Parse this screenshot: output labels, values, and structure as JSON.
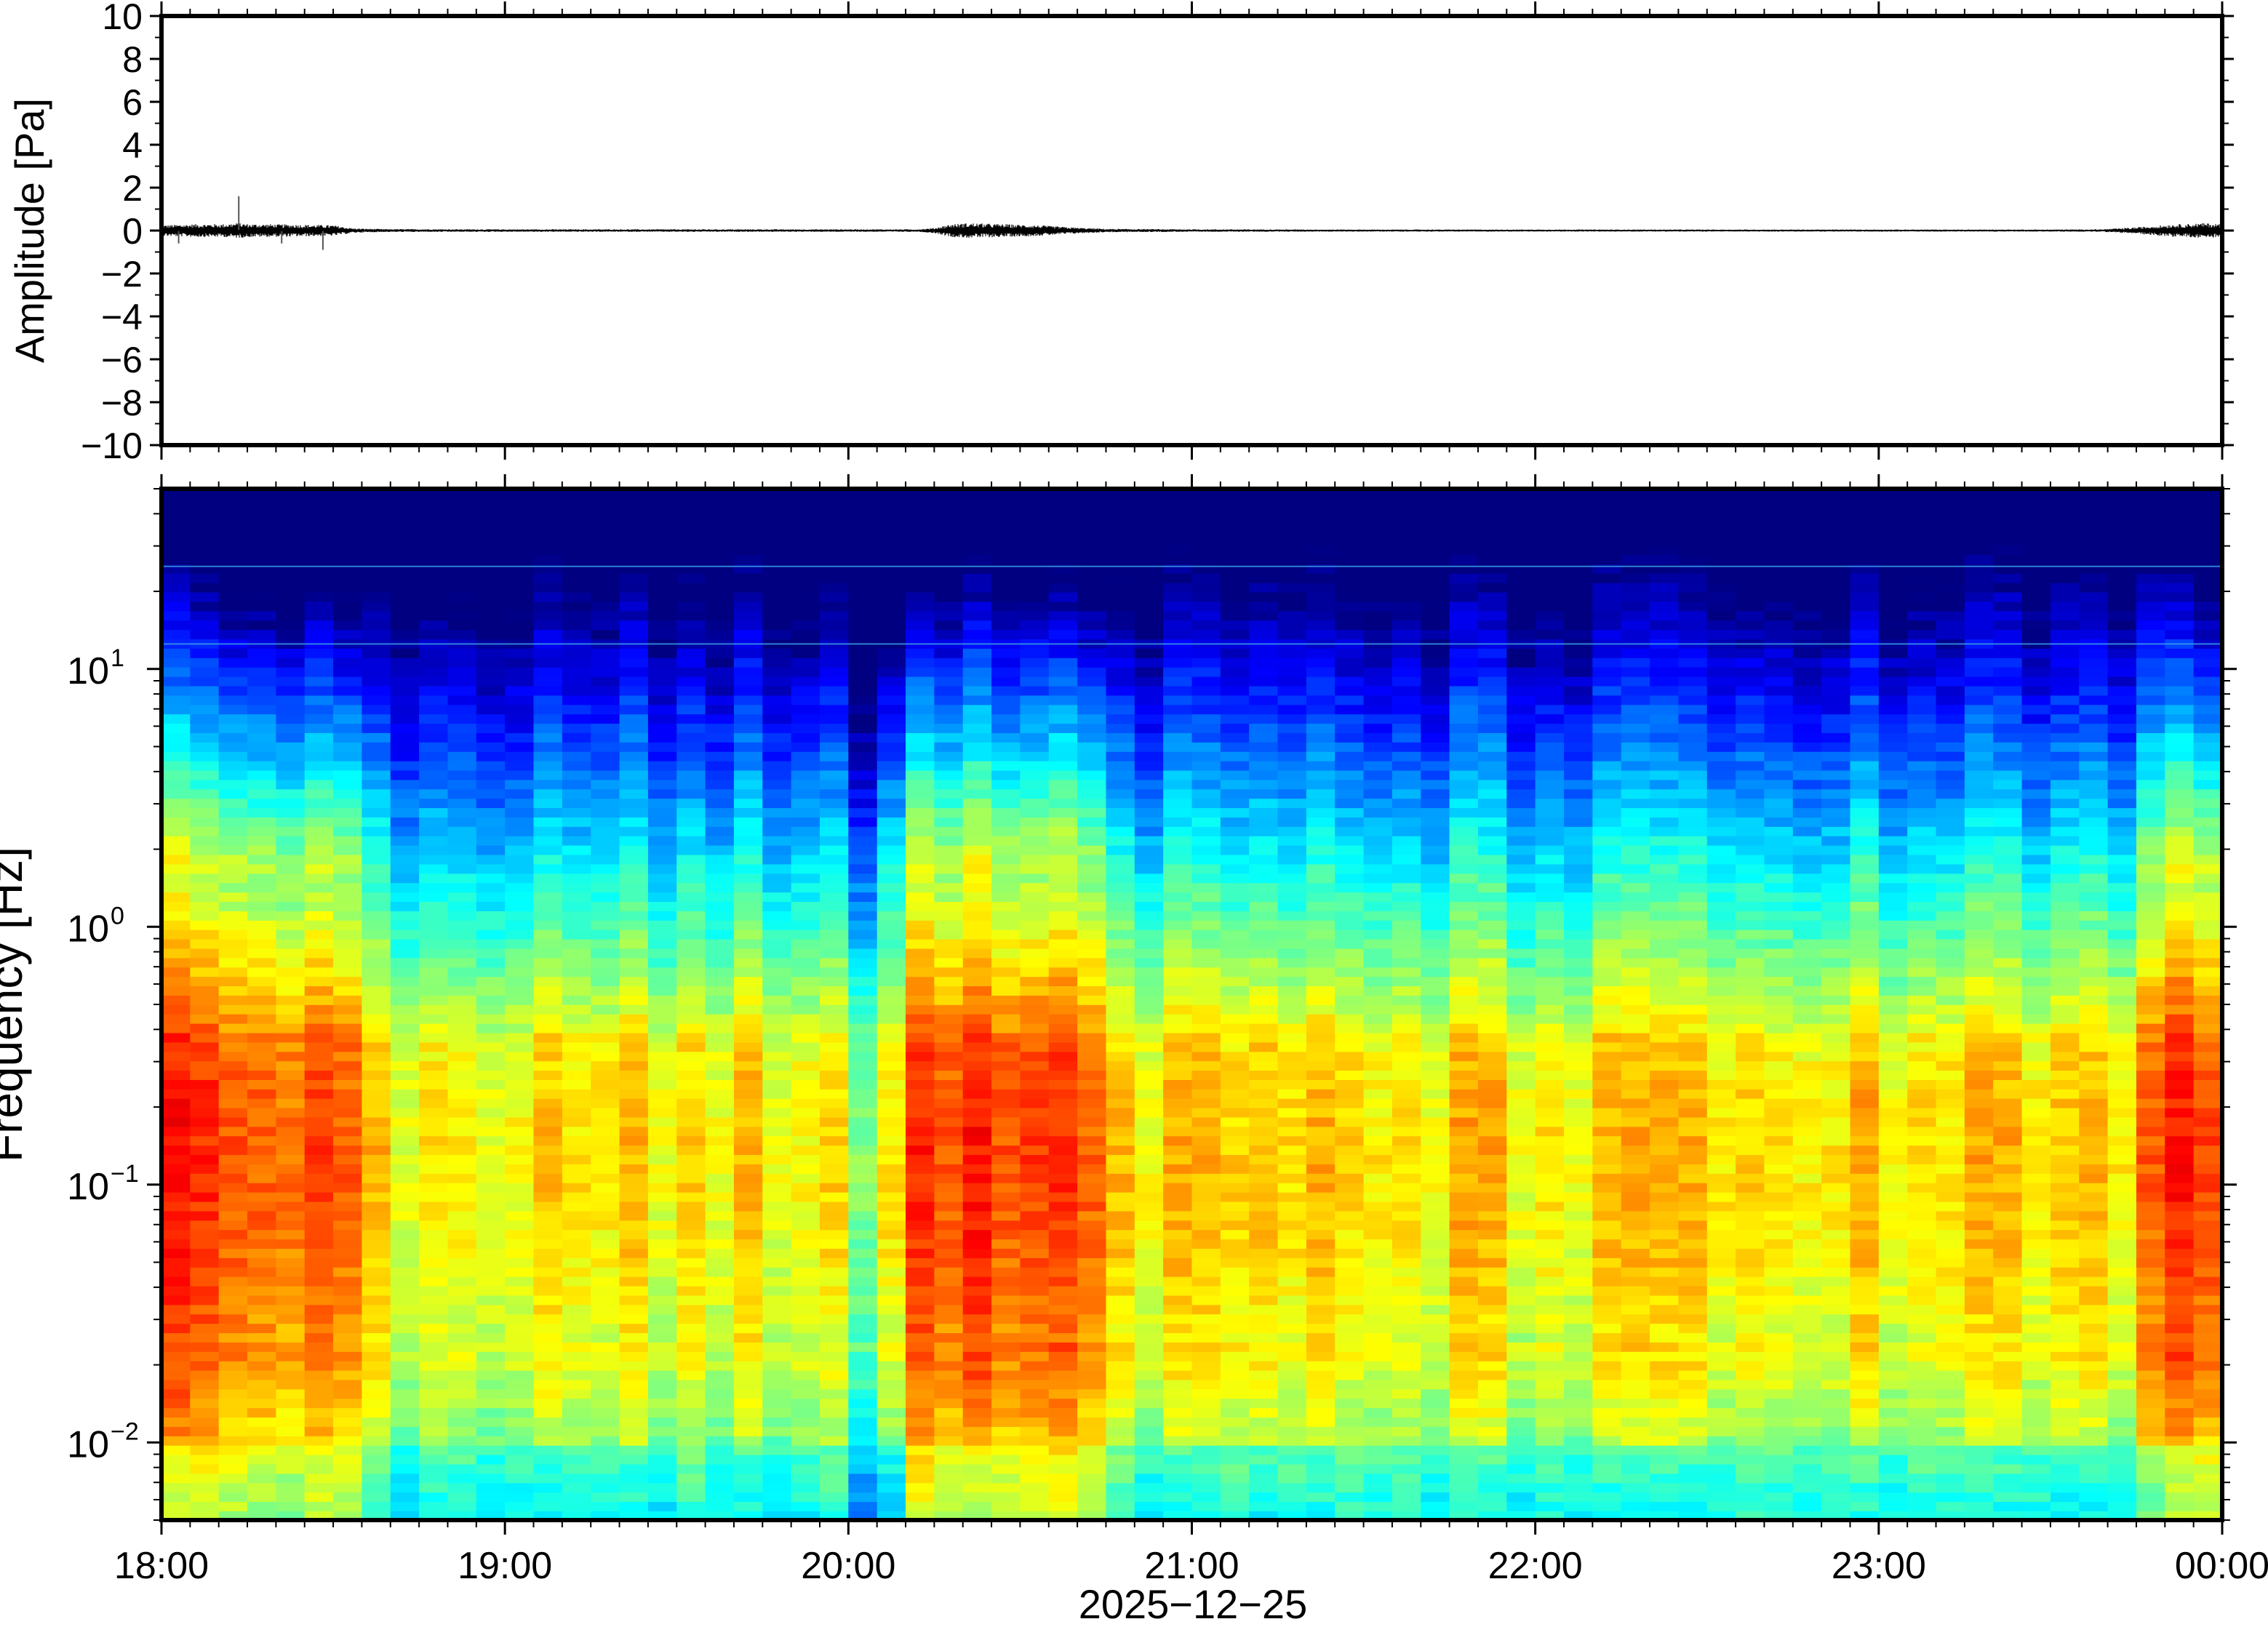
{
  "chart_data": [
    {
      "type": "line",
      "ylabel": "Amplitude [Pa]",
      "ylim": [
        -10,
        10
      ],
      "yticks": [
        10,
        8,
        6,
        4,
        2,
        0,
        -2,
        -4,
        -6,
        -8,
        -10
      ],
      "ytick_labels": [
        "10",
        "8",
        "6",
        "4",
        "2",
        "0",
        "−2",
        "−4",
        "−6",
        "−8",
        "−10"
      ],
      "xlim_hours": [
        18.0,
        24.0
      ],
      "grid": false,
      "series_color": "#000000",
      "envelope": {
        "t_hours": [
          18.0,
          18.1,
          18.18,
          18.22,
          18.26,
          18.3,
          18.4,
          18.5,
          18.56,
          18.65,
          19.0,
          19.5,
          20.0,
          20.2,
          20.25,
          20.3,
          20.35,
          20.45,
          20.55,
          20.65,
          20.75,
          21.0,
          21.5,
          22.0,
          22.5,
          23.0,
          23.5,
          23.65,
          23.75,
          23.85,
          23.95,
          24.0
        ],
        "amp": [
          0.25,
          0.3,
          0.3,
          0.35,
          0.3,
          0.3,
          0.28,
          0.25,
          0.1,
          0.07,
          0.06,
          0.06,
          0.06,
          0.06,
          0.12,
          0.3,
          0.35,
          0.3,
          0.25,
          0.15,
          0.08,
          0.06,
          0.05,
          0.05,
          0.05,
          0.05,
          0.05,
          0.06,
          0.15,
          0.28,
          0.35,
          0.3
        ]
      },
      "spikes": [
        {
          "t_hours": 18.225,
          "y": 1.6
        },
        {
          "t_hours": 18.05,
          "y": -0.6
        },
        {
          "t_hours": 18.47,
          "y": -0.9
        },
        {
          "t_hours": 18.35,
          "y": -0.6
        }
      ]
    },
    {
      "type": "heatmap",
      "xlabel": "2025−12−25",
      "ylabel": "Frequency [Hz]",
      "yscale": "log",
      "ylim": [
        0.005,
        50
      ],
      "yticks": [
        0.01,
        0.1,
        1,
        10
      ],
      "ytick_labels": [
        {
          "base": "10",
          "exp": "−2"
        },
        {
          "base": "10",
          "exp": "−1"
        },
        {
          "base": "10",
          "exp": "0"
        },
        {
          "base": "10",
          "exp": "1"
        }
      ],
      "x_ticks_hours": [
        18,
        19,
        20,
        21,
        22,
        23,
        24
      ],
      "x_tick_labels": [
        "18:00",
        "19:00",
        "20:00",
        "21:00",
        "22:00",
        "23:00",
        "00:00"
      ],
      "colormap": "jet",
      "narrowband_lines_hz": [
        25,
        12.5
      ],
      "energetic_intervals_hours": [
        [
          18.0,
          18.55
        ],
        [
          20.2,
          20.7
        ],
        [
          23.85,
          24.0
        ]
      ],
      "quiet_intervals_hours": [
        [
          20.0,
          20.2
        ]
      ],
      "grid": false
    }
  ]
}
